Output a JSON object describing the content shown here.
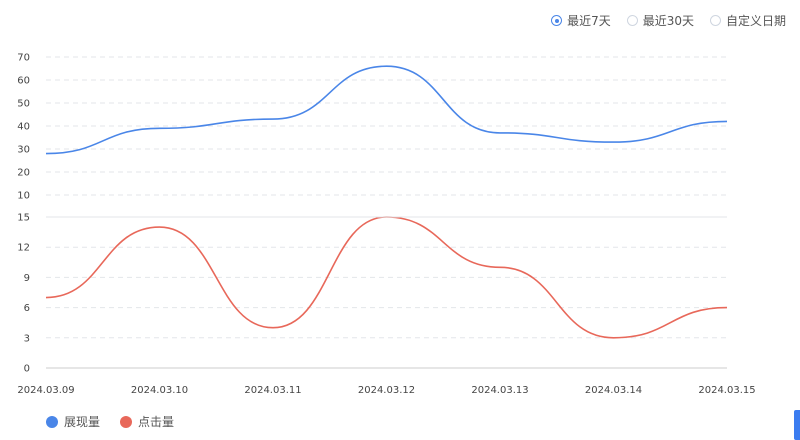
{
  "range_selector": {
    "options": [
      {
        "label": "最近7天",
        "selected": true
      },
      {
        "label": "最近30天",
        "selected": false
      },
      {
        "label": "自定义日期",
        "selected": false
      }
    ]
  },
  "colors": {
    "primary": "#4a86e8",
    "secondary": "#e8685a",
    "grid": "#e3e6ea",
    "axis": "#cccccc"
  },
  "chart_data": {
    "type": "line",
    "categories": [
      "2024.03.09",
      "2024.03.10",
      "2024.03.11",
      "2024.03.12",
      "2024.03.13",
      "2024.03.14",
      "2024.03.15"
    ],
    "series": [
      {
        "name": "展现量",
        "values": [
          28,
          39,
          43,
          66,
          37,
          33,
          42
        ],
        "color": "#4a86e8",
        "ylim": [
          10,
          70
        ],
        "yticks": [
          10,
          20,
          30,
          40,
          50,
          60,
          70
        ]
      },
      {
        "name": "点击量",
        "values": [
          7,
          14,
          4,
          15,
          10,
          3,
          6
        ],
        "color": "#e8685a",
        "ylim": [
          0,
          15
        ],
        "yticks": [
          0,
          3,
          6,
          9,
          12,
          15
        ]
      }
    ],
    "smooth": true,
    "grid": true,
    "legend_position": "bottom-left"
  }
}
